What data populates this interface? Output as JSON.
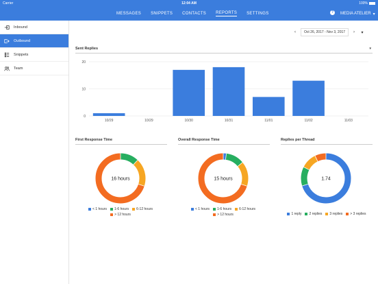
{
  "status": {
    "carrier": "Carrier",
    "time": "12:04 AM",
    "battery": "100%"
  },
  "nav": {
    "tabs": [
      "MESSAGES",
      "SNIPPETS",
      "CONTACTS",
      "REPORTS",
      "SETTINGS"
    ],
    "active_tab": "REPORTS",
    "help_symbol": "?",
    "account": "MEDIA ATELIER"
  },
  "sidebar": {
    "items": [
      {
        "label": "Inbound",
        "icon": "inbox-in-icon"
      },
      {
        "label": "Outbound",
        "icon": "outbox-icon"
      },
      {
        "label": "Snippets",
        "icon": "snippets-icon"
      },
      {
        "label": "Team",
        "icon": "team-icon"
      }
    ],
    "active": "Outbound"
  },
  "date_range": {
    "label": "Oct 26, 2017 - Nov 3, 2017"
  },
  "sent_replies": {
    "title": "Sent Replies",
    "chart_data": {
      "type": "bar",
      "categories": [
        "10/29",
        "10/29",
        "10/30",
        "10/31",
        "11/01",
        "11/02",
        "11/03"
      ],
      "values": [
        1,
        0,
        17,
        18,
        7,
        13,
        0
      ],
      "ylim": [
        0,
        20
      ],
      "yticks": [
        0,
        10,
        20
      ],
      "color": "#3b7ddd"
    }
  },
  "donuts": [
    {
      "title": "First Response Time",
      "center": "16 hours",
      "chart_data": {
        "type": "pie",
        "labels": [
          "< 1 hours",
          "1-6 hours",
          "6-12 hours",
          "> 12 hours"
        ],
        "values": [
          0,
          12,
          18,
          70
        ],
        "colors": [
          "#3b7ddd",
          "#27ae60",
          "#f6a623",
          "#f36c21"
        ]
      }
    },
    {
      "title": "Overall Response Time",
      "center": "15 hours",
      "chart_data": {
        "type": "pie",
        "labels": [
          "< 1 hours",
          "1-6 hours",
          "6-12 hours",
          "> 12 hours"
        ],
        "values": [
          2,
          12,
          16,
          70
        ],
        "colors": [
          "#3b7ddd",
          "#27ae60",
          "#f6a623",
          "#f36c21"
        ]
      }
    },
    {
      "title": "Replies per Thread",
      "center": "1.74",
      "chart_data": {
        "type": "pie",
        "labels": [
          "1 reply",
          "2 replies",
          "3 replies",
          "> 3 replies"
        ],
        "values": [
          68,
          12,
          10,
          7
        ],
        "colors": [
          "#3b7ddd",
          "#27ae60",
          "#f6a623",
          "#f36c21"
        ]
      }
    }
  ]
}
